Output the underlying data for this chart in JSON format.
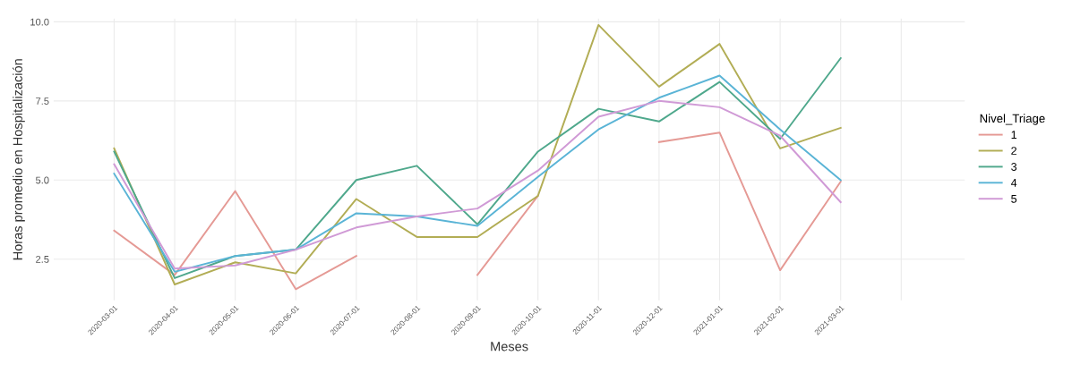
{
  "chart_data": {
    "type": "line",
    "xlabel": "Meses",
    "ylabel": "Horas promedio en Hospitalización",
    "legend_title": "Nivel_Triage",
    "categories": [
      "2020-03-01",
      "2020-04-01",
      "2020-05-01",
      "2020-06-01",
      "2020-07-01",
      "2020-08-01",
      "2020-09-01",
      "2020-10-01",
      "2020-11-01",
      "2020-12-01",
      "2021-01-01",
      "2021-02-01",
      "2021-03-01",
      null
    ],
    "series": [
      {
        "name": "1",
        "color": "#e59a95",
        "values": [
          3.4,
          2.0,
          4.65,
          1.55,
          2.6,
          null,
          2.0,
          4.5,
          null,
          6.2,
          6.5,
          2.15,
          4.95,
          null
        ]
      },
      {
        "name": "2",
        "color": "#b2ad55",
        "values": [
          6.0,
          1.7,
          2.4,
          2.05,
          4.4,
          3.2,
          3.2,
          4.5,
          9.9,
          7.95,
          9.3,
          6.0,
          6.65,
          null
        ]
      },
      {
        "name": "3",
        "color": "#4fa88c",
        "values": [
          5.9,
          1.9,
          2.6,
          2.8,
          5.0,
          5.45,
          3.6,
          5.9,
          7.25,
          6.85,
          8.1,
          6.3,
          8.85,
          null
        ]
      },
      {
        "name": "4",
        "color": "#5ab4d6",
        "values": [
          5.2,
          2.1,
          2.6,
          2.8,
          3.95,
          3.85,
          3.55,
          5.1,
          6.6,
          7.6,
          8.3,
          6.6,
          5.0,
          null
        ]
      },
      {
        "name": "5",
        "color": "#d09ad6",
        "values": [
          5.5,
          2.2,
          2.3,
          2.8,
          3.5,
          3.85,
          4.1,
          5.3,
          7.0,
          7.5,
          7.3,
          6.4,
          4.3,
          null
        ]
      }
    ],
    "ylim": [
      1.2,
      10.1
    ],
    "yticks": [
      {
        "value": 2.5,
        "label": "2.5"
      },
      {
        "value": 5,
        "label": "5.0"
      },
      {
        "value": 7.5,
        "label": "7.5"
      },
      {
        "value": 10,
        "label": "10.0"
      }
    ],
    "grid": true,
    "legend": "right",
    "marker": "none",
    "line_style": "solid"
  }
}
